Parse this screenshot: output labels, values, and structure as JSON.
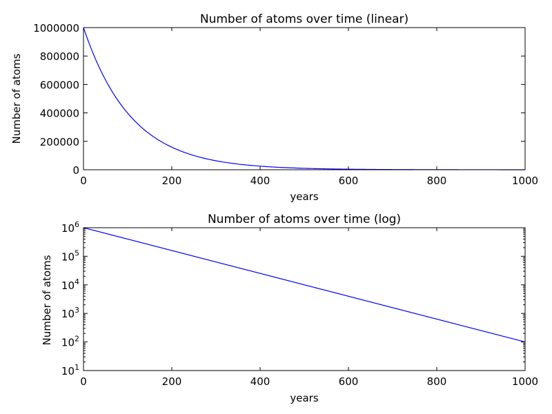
{
  "chart_data": [
    {
      "type": "line",
      "title": "Number of atoms over time (linear)",
      "xlabel": "years",
      "ylabel": "Number of atoms",
      "xlim": [
        0,
        1000
      ],
      "ylim": [
        0,
        1000000
      ],
      "yscale": "linear",
      "grid": false,
      "xticks": [
        0,
        200,
        400,
        600,
        800,
        1000
      ],
      "xtick_labels": [
        "0",
        "200",
        "400",
        "600",
        "800",
        "1000"
      ],
      "yticks": [
        0,
        200000,
        400000,
        600000,
        800000,
        1000000
      ],
      "ytick_labels": [
        "0",
        "200000",
        "400000",
        "600000",
        "800000",
        "1000000"
      ],
      "series": [
        {
          "color": "#0000ff",
          "x": [
            0,
            25,
            50,
            75,
            100,
            125,
            150,
            175,
            200,
            250,
            300,
            350,
            400,
            450,
            500,
            600,
            700,
            800,
            900,
            1000
          ],
          "y": [
            1000000,
            794300,
            631000,
            501200,
            398100,
            316200,
            251200,
            199500,
            158500,
            100000,
            63100,
            39800,
            25100,
            15800,
            10000,
            3980,
            1580,
            631,
            251,
            100
          ]
        }
      ]
    },
    {
      "type": "line",
      "title": "Number of atoms over time (log)",
      "xlabel": "years",
      "ylabel": "Number of atoms",
      "xlim": [
        0,
        1000
      ],
      "ylim": [
        10,
        1000000
      ],
      "yscale": "log",
      "grid": false,
      "xticks": [
        0,
        200,
        400,
        600,
        800,
        1000
      ],
      "xtick_labels": [
        "0",
        "200",
        "400",
        "600",
        "800",
        "1000"
      ],
      "yticks": [
        10,
        100,
        1000,
        10000,
        100000,
        1000000
      ],
      "ytick_labels": [
        {
          "base": "10",
          "exp": "1"
        },
        {
          "base": "10",
          "exp": "2"
        },
        {
          "base": "10",
          "exp": "3"
        },
        {
          "base": "10",
          "exp": "4"
        },
        {
          "base": "10",
          "exp": "5"
        },
        {
          "base": "10",
          "exp": "6"
        }
      ],
      "series": [
        {
          "color": "#0000ff",
          "x": [
            0,
            1000
          ],
          "y": [
            1000000,
            100
          ]
        }
      ]
    }
  ]
}
